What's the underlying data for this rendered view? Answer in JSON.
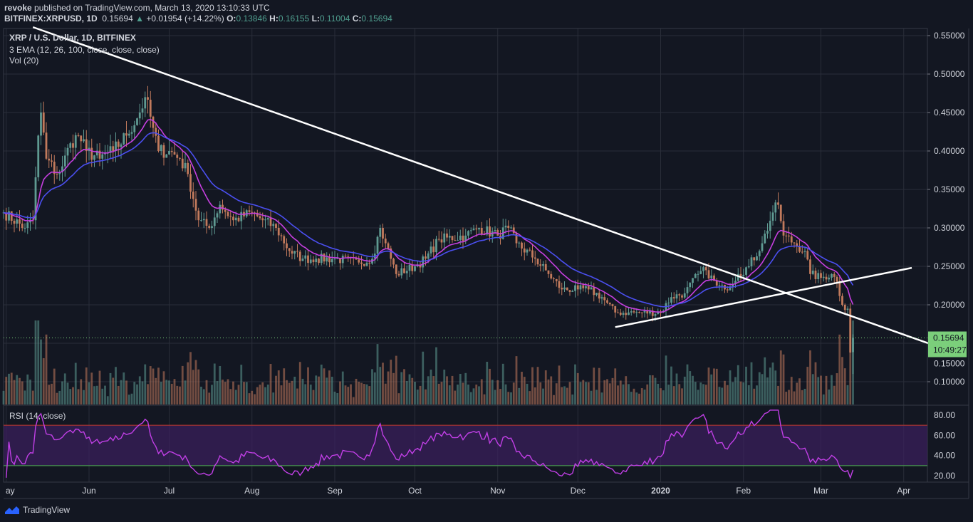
{
  "header": {
    "author": "revoke",
    "published": "published on TradingView.com, March 13, 2020 13:10:33 UTC",
    "symbol": "BITFINEX:XRPUSD, 1D",
    "last": "0.15694",
    "change": "+0.01954 (+14.22%)",
    "o_label": "O:",
    "o": "0.13846",
    "h_label": "H:",
    "h": "0.16155",
    "l_label": "L:",
    "l": "0.11004",
    "c_label": "C:",
    "c": "0.15694"
  },
  "legend": {
    "title": "XRP / U.S. Dollar, 1D, BITFINEX",
    "ema": "3 EMA (12, 26, 100, close, close, close)",
    "vol": "Vol (20)",
    "rsi": "RSI (14, close)"
  },
  "price_label": {
    "value": "0.15694",
    "countdown": "10:49:27"
  },
  "footer": {
    "brand": "TradingView"
  },
  "colors": {
    "bg": "#131722",
    "grid": "#2a2e39",
    "up": "#5f9a92",
    "down": "#c27a5c",
    "ema12": "#c63fe0",
    "ema26": "#4b4ff0",
    "rsi": "#c13fe6",
    "rsi_band": "#3c1f5e",
    "rsi_upper": "#c0392b",
    "rsi_lower": "#4caf50",
    "trendline": "#ffffff",
    "price_tag": "#7bcf7b"
  },
  "chart_data": {
    "type": "candlestick",
    "interval": "1D",
    "y_ticks": [
      "0.55000",
      "0.50000",
      "0.45000",
      "0.40000",
      "0.35000",
      "0.30000",
      "0.25000",
      "0.20000",
      "0.15000",
      "0.10000"
    ],
    "x_ticks": [
      {
        "label": "ay",
        "date": "2019-05-01"
      },
      {
        "label": "Jun",
        "date": "2019-06-01"
      },
      {
        "label": "Jul",
        "date": "2019-07-01"
      },
      {
        "label": "Aug",
        "date": "2019-08-01"
      },
      {
        "label": "Sep",
        "date": "2019-09-01"
      },
      {
        "label": "Oct",
        "date": "2019-10-01"
      },
      {
        "label": "Nov",
        "date": "2019-11-01"
      },
      {
        "label": "Dec",
        "date": "2019-12-01"
      },
      {
        "label": "2020",
        "date": "2020-01-01"
      },
      {
        "label": "Feb",
        "date": "2020-02-01"
      },
      {
        "label": "Mar",
        "date": "2020-03-01"
      },
      {
        "label": "Apr",
        "date": "2020-04-01"
      }
    ],
    "rsi_ticks": [
      "80.00",
      "60.00",
      "40.00",
      "20.00"
    ],
    "rsi_bands": [
      70,
      30
    ],
    "close_path": [
      [
        "2019-04-30",
        0.32
      ],
      [
        "2019-05-08",
        0.3
      ],
      [
        "2019-05-11",
        0.31
      ],
      [
        "2019-05-13",
        0.42
      ],
      [
        "2019-05-14",
        0.45
      ],
      [
        "2019-05-16",
        0.39
      ],
      [
        "2019-05-20",
        0.37
      ],
      [
        "2019-05-22",
        0.38
      ],
      [
        "2019-05-25",
        0.41
      ],
      [
        "2019-05-28",
        0.42
      ],
      [
        "2019-05-31",
        0.4
      ],
      [
        "2019-06-05",
        0.39
      ],
      [
        "2019-06-10",
        0.4
      ],
      [
        "2019-06-15",
        0.42
      ],
      [
        "2019-06-20",
        0.45
      ],
      [
        "2019-06-22",
        0.47
      ],
      [
        "2019-06-25",
        0.43
      ],
      [
        "2019-06-27",
        0.4
      ],
      [
        "2019-07-01",
        0.4
      ],
      [
        "2019-07-05",
        0.39
      ],
      [
        "2019-07-08",
        0.37
      ],
      [
        "2019-07-12",
        0.31
      ],
      [
        "2019-07-16",
        0.3
      ],
      [
        "2019-07-20",
        0.33
      ],
      [
        "2019-07-25",
        0.31
      ],
      [
        "2019-08-01",
        0.32
      ],
      [
        "2019-08-05",
        0.31
      ],
      [
        "2019-08-10",
        0.3
      ],
      [
        "2019-08-15",
        0.27
      ],
      [
        "2019-08-20",
        0.26
      ],
      [
        "2019-08-25",
        0.26
      ],
      [
        "2019-09-01",
        0.26
      ],
      [
        "2019-09-10",
        0.255
      ],
      [
        "2019-09-15",
        0.26
      ],
      [
        "2019-09-18",
        0.3
      ],
      [
        "2019-09-20",
        0.28
      ],
      [
        "2019-09-24",
        0.24
      ],
      [
        "2019-10-01",
        0.25
      ],
      [
        "2019-10-05",
        0.26
      ],
      [
        "2019-10-10",
        0.285
      ],
      [
        "2019-10-20",
        0.29
      ],
      [
        "2019-10-25",
        0.3
      ],
      [
        "2019-11-01",
        0.29
      ],
      [
        "2019-11-05",
        0.3
      ],
      [
        "2019-11-08",
        0.28
      ],
      [
        "2019-11-15",
        0.26
      ],
      [
        "2019-11-20",
        0.24
      ],
      [
        "2019-11-25",
        0.22
      ],
      [
        "2019-12-01",
        0.22
      ],
      [
        "2019-12-05",
        0.22
      ],
      [
        "2019-12-10",
        0.21
      ],
      [
        "2019-12-15",
        0.19
      ],
      [
        "2019-12-20",
        0.19
      ],
      [
        "2019-12-25",
        0.19
      ],
      [
        "2020-01-01",
        0.19
      ],
      [
        "2020-01-05",
        0.21
      ],
      [
        "2020-01-10",
        0.215
      ],
      [
        "2020-01-15",
        0.24
      ],
      [
        "2020-01-18",
        0.245
      ],
      [
        "2020-01-22",
        0.225
      ],
      [
        "2020-01-25",
        0.22
      ],
      [
        "2020-01-30",
        0.24
      ],
      [
        "2020-02-03",
        0.25
      ],
      [
        "2020-02-08",
        0.28
      ],
      [
        "2020-02-12",
        0.32
      ],
      [
        "2020-02-14",
        0.33
      ],
      [
        "2020-02-16",
        0.29
      ],
      [
        "2020-02-20",
        0.28
      ],
      [
        "2020-02-24",
        0.27
      ],
      [
        "2020-02-26",
        0.24
      ],
      [
        "2020-03-01",
        0.235
      ],
      [
        "2020-03-05",
        0.24
      ],
      [
        "2020-03-07",
        0.23
      ],
      [
        "2020-03-09",
        0.2
      ],
      [
        "2020-03-11",
        0.195
      ],
      [
        "2020-03-12",
        0.138
      ],
      [
        "2020-03-13",
        0.157
      ]
    ],
    "trendlines": [
      {
        "from": [
          "2019-05-11",
          0.561
        ],
        "to": [
          "2020-04-11",
          0.149
        ]
      },
      {
        "from": [
          "2019-12-15",
          0.171
        ],
        "to": [
          "2020-04-04",
          0.248
        ]
      }
    ],
    "last_price": 0.15694
  }
}
